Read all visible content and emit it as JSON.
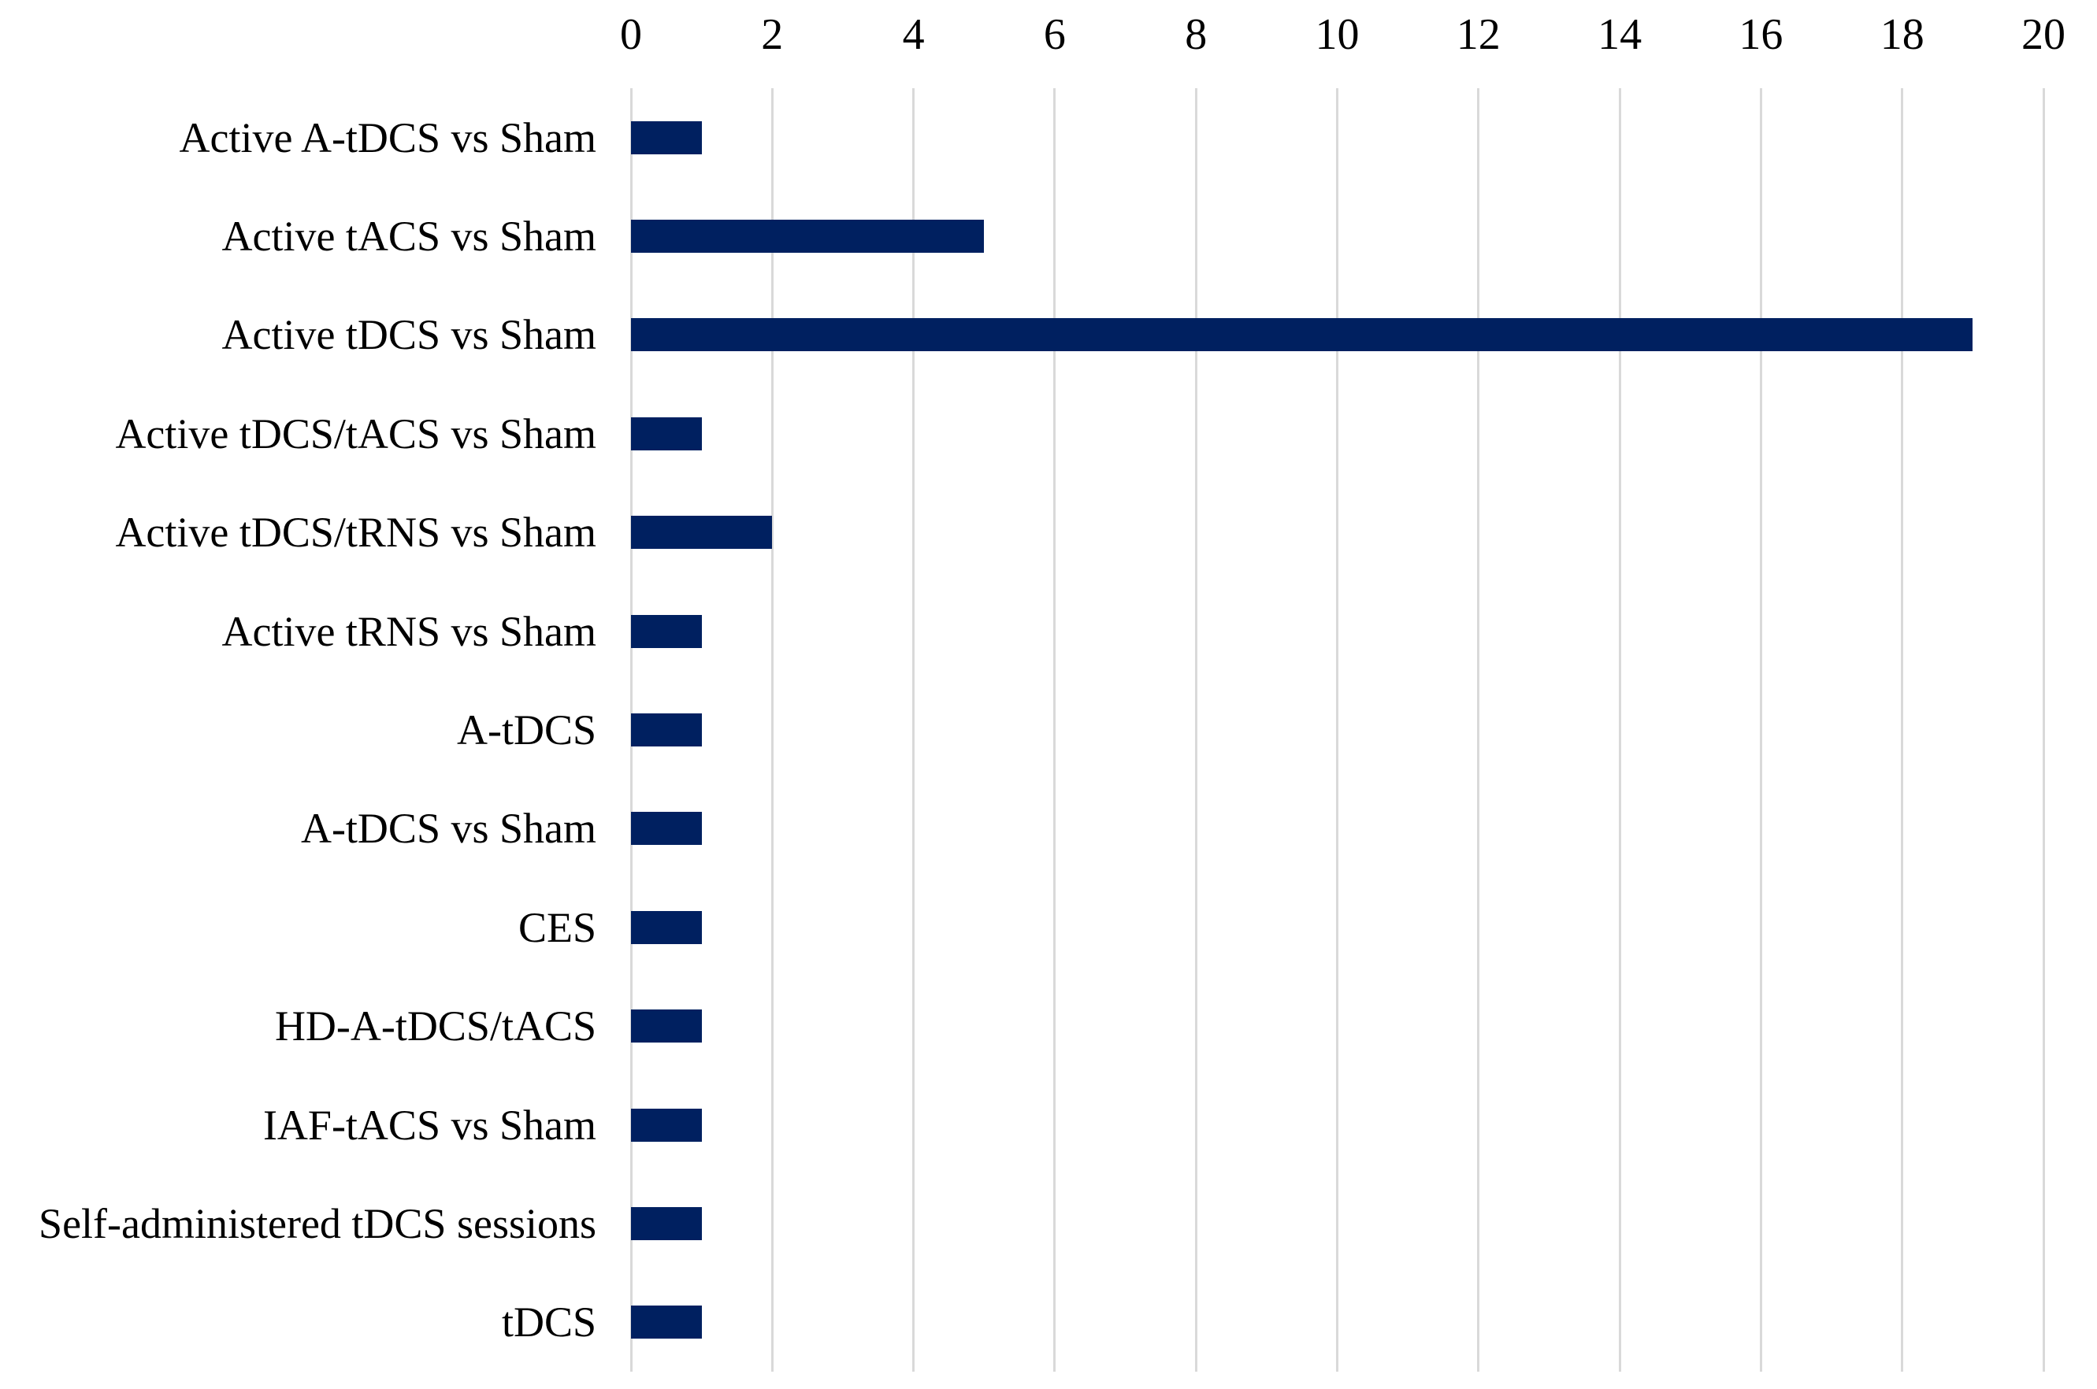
{
  "chart_data": {
    "type": "bar",
    "orientation": "horizontal",
    "title": "",
    "xlabel": "",
    "ylabel": "",
    "categories": [
      "Active A-tDCS vs Sham",
      "Active tACS vs Sham",
      "Active tDCS vs Sham",
      "Active tDCS/tACS vs Sham",
      "Active tDCS/tRNS vs Sham",
      "Active tRNS vs Sham",
      "A-tDCS",
      "A-tDCS vs Sham",
      "CES",
      "HD-A-tDCS/tACS",
      "IAF-tACS vs Sham",
      "Self-administered tDCS sessions",
      "tDCS"
    ],
    "values": [
      1,
      5,
      19,
      1,
      2,
      1,
      1,
      1,
      1,
      1,
      1,
      1,
      1
    ],
    "xlim": [
      0,
      20
    ],
    "xticks": [
      0,
      2,
      4,
      6,
      8,
      10,
      12,
      14,
      16,
      18,
      20
    ],
    "xtick_position": "top",
    "grid": "vertical",
    "legend": "none",
    "colors": {
      "bar": "#002060",
      "gridline": "#D9D9D9",
      "background": "#FFFFFF",
      "text": "#000000"
    }
  }
}
